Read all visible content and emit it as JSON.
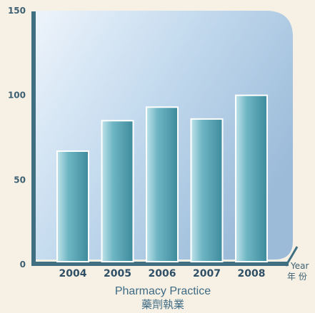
{
  "chart_data": {
    "type": "bar",
    "categories": [
      "2004",
      "2005",
      "2006",
      "2007",
      "2008"
    ],
    "values": [
      67,
      85,
      93,
      86,
      100
    ],
    "ylim": [
      0,
      150
    ],
    "yticks": [
      0,
      50,
      100,
      150
    ],
    "ytick_labels": [
      "0",
      "50",
      "100",
      "150"
    ],
    "x_unit_en": "Year",
    "x_unit_zh": "年 份",
    "caption_en": "Pharmacy Practice",
    "caption_zh": "藥劑執業",
    "legend": "none",
    "grid": false,
    "colors": {
      "background": "#f6f1e4",
      "panel_light": "#eef4fb",
      "panel_mid": "#c6dcef",
      "panel_dark": "#9bbbd9",
      "axis": "#3f6f80",
      "bar_light": "#bfe3ea",
      "bar_mid": "#6fb6c4",
      "bar_dark": "#3d8b9d",
      "bar_outline": "#ffffff",
      "text": "#3d5f72"
    }
  }
}
